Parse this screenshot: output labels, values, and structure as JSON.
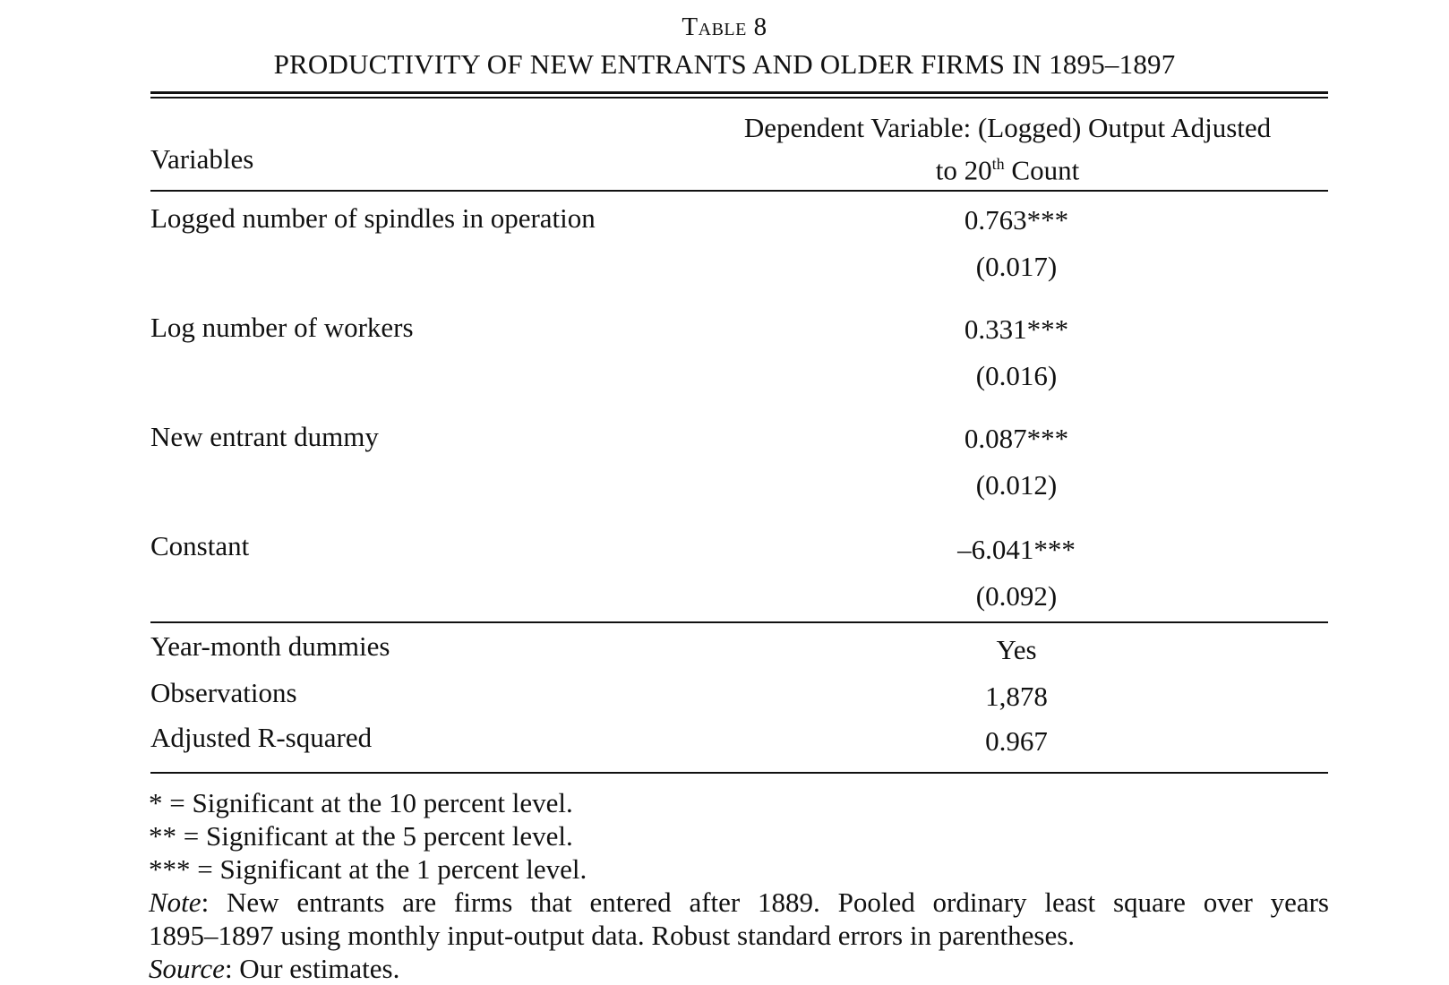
{
  "table": {
    "label": "Table 8",
    "title": "PRODUCTIVITY OF NEW ENTRANTS AND OLDER FIRMS IN 1895–1897",
    "header": {
      "variables": "Variables",
      "dependent_line1": "Dependent Variable: (Logged) Output Adjusted",
      "dependent_line2_pre": "to 20",
      "dependent_line2_sup": "th",
      "dependent_line2_post": " Count"
    },
    "rows": [
      {
        "label": "Logged number of spindles in operation",
        "coef": "0.763***",
        "se": "(0.017)"
      },
      {
        "label": "Log number of workers",
        "coef": "0.331***",
        "se": "(0.016)"
      },
      {
        "label": "New entrant dummy",
        "coef": "0.087***",
        "se": "(0.012)"
      },
      {
        "label": "Constant",
        "coef": "–6.041***",
        "se": "(0.092)"
      }
    ],
    "summary": [
      {
        "label": "Year-month dummies",
        "value": "Yes"
      },
      {
        "label": "Observations",
        "value": "1,878"
      },
      {
        "label": "Adjusted R-squared",
        "value": "0.967"
      }
    ]
  },
  "notes": {
    "sig10": "* = Significant at the 10 percent level.",
    "sig5": "** = Significant at the 5 percent level.",
    "sig1": "*** = Significant at the 1 percent level.",
    "note_label": "Note",
    "note_line1": ": New entrants are firms that entered after 1889. Pooled ordinary least square over years",
    "note_line2": "1895–1897 using monthly input-output data. Robust standard errors in parentheses.",
    "source_label": "Source",
    "source_text": ": Our estimates."
  }
}
